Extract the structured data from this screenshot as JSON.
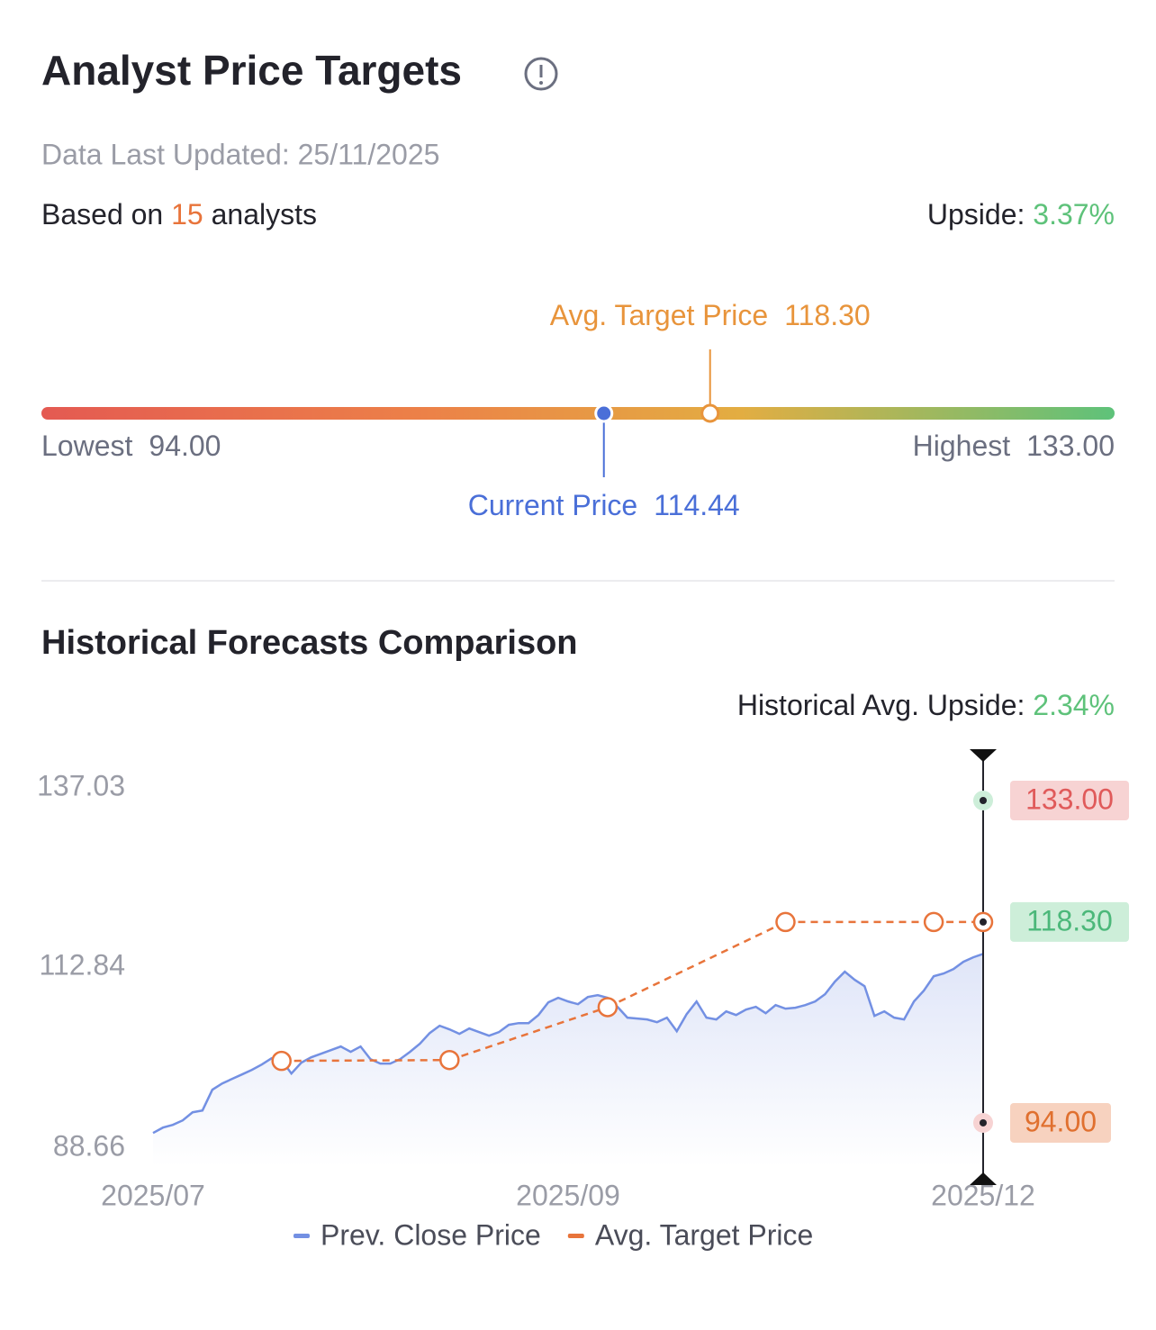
{
  "header": {
    "title": "Analyst Price Targets",
    "updated": "Data Last Updated: 25/11/2025"
  },
  "summary": {
    "based_on": "Based on",
    "analysts": 15,
    "analysts_word": "analysts",
    "upside_label": "Upside:",
    "upside": "3.37%"
  },
  "range": {
    "low_label": "Lowest",
    "low": {
      "value": 94,
      "label": "94.00"
    },
    "high_label": "Highest",
    "high": {
      "value": 133,
      "label": "133.00"
    },
    "current_label": "Current Price",
    "current": 114.44,
    "avg_label": "Avg. Target Price",
    "avg": {
      "value": 118.3,
      "label": "118.30"
    }
  },
  "chart_data": {
    "type": "line",
    "title": "Historical Forecasts Comparison",
    "annotation_label": "Historical Avg. Upside:",
    "annotation_value": "2.34%",
    "categories": [
      "2025/07",
      null,
      null,
      null,
      null,
      null,
      null,
      null,
      null,
      null,
      null,
      null,
      null,
      null,
      null,
      null,
      null,
      null,
      null,
      null,
      null,
      null,
      null,
      null,
      null,
      null,
      null,
      null,
      null,
      null,
      null,
      null,
      null,
      null,
      null,
      null,
      null,
      null,
      null,
      null,
      null,
      null,
      "2025/09",
      null,
      null,
      null,
      null,
      null,
      null,
      null,
      null,
      null,
      null,
      null,
      null,
      null,
      null,
      null,
      null,
      null,
      null,
      null,
      null,
      null,
      null,
      null,
      null,
      null,
      null,
      null,
      null,
      null,
      null,
      null,
      null,
      null,
      null,
      null,
      null,
      null,
      null,
      null,
      null,
      null,
      "2025/12"
    ],
    "series": [
      {
        "name": "Prev. Close Price",
        "color": "#7390e3",
        "values": [
          92.78,
          93.43,
          93.76,
          94.3,
          95.28,
          95.5,
          98.01,
          98.77,
          99.32,
          99.86,
          100.41,
          101.06,
          101.82,
          101.6,
          99.97,
          101.28,
          101.93,
          102.37,
          102.8,
          103.24,
          102.59,
          103.24,
          101.71,
          101.17,
          101.17,
          101.71,
          102.59,
          103.57,
          104.87,
          105.75,
          105.31,
          104.77,
          105.42,
          104.98,
          104.55,
          104.98,
          105.86,
          106.07,
          106.07,
          107.05,
          108.58,
          109.13,
          108.69,
          108.36,
          109.23,
          109.45,
          109.13,
          108.04,
          106.73,
          106.62,
          106.51,
          106.18,
          106.73,
          105.09,
          107.16,
          108.69,
          106.73,
          106.51,
          107.49,
          107.05,
          107.71,
          108.04,
          107.27,
          108.25,
          107.82,
          107.93,
          108.25,
          108.69,
          109.56,
          111.09,
          112.29,
          111.31,
          110.54,
          106.95,
          107.49,
          106.73,
          106.51,
          108.69,
          110.0,
          111.74,
          112.07,
          112.61,
          113.49,
          114.03,
          114.44
        ]
      },
      {
        "name": "Avg. Target Price",
        "color": "#e8743b",
        "dashed": true,
        "connect_gaps": true,
        "values": [
          null,
          null,
          null,
          null,
          null,
          null,
          null,
          null,
          null,
          null,
          null,
          null,
          null,
          101.5,
          null,
          null,
          null,
          null,
          null,
          null,
          null,
          null,
          null,
          null,
          null,
          null,
          null,
          null,
          null,
          null,
          101.6,
          null,
          null,
          null,
          null,
          null,
          null,
          null,
          null,
          null,
          null,
          null,
          null,
          null,
          null,
          null,
          108,
          null,
          null,
          null,
          null,
          null,
          null,
          null,
          null,
          null,
          null,
          null,
          null,
          null,
          null,
          null,
          null,
          null,
          118.3,
          null,
          null,
          null,
          null,
          null,
          null,
          null,
          null,
          null,
          null,
          null,
          null,
          null,
          null,
          118.3,
          null,
          null,
          null,
          null,
          118.3
        ]
      }
    ],
    "ylim": [
      88.66,
      137.03
    ],
    "yticks": [
      88.66,
      112.84,
      137.03
    ],
    "markers": [
      {
        "value": 133,
        "label": "133.00",
        "color": "#e05a5a",
        "background": "#f7d3d3"
      },
      {
        "value": 118.3,
        "label": "118.30",
        "color": "#4cb87a",
        "background": "#cdeed9"
      },
      {
        "value": 94,
        "label": "94.00",
        "color": "#e0702f",
        "background": "#f7d2bf"
      }
    ]
  }
}
